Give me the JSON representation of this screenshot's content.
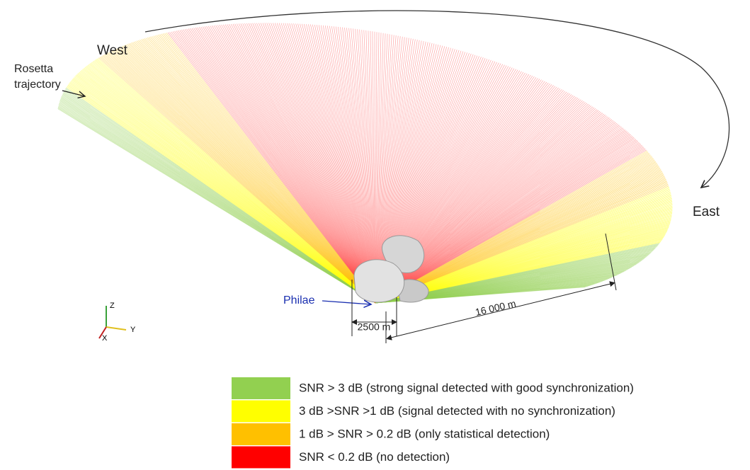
{
  "labels": {
    "west": "West",
    "east": "East",
    "rosetta": [
      "Rosetta",
      "trajectory"
    ],
    "philae": "Philae",
    "dim_short": "2500 m",
    "dim_long": "16 000 m"
  },
  "axes": {
    "z": "Z",
    "y": "Y",
    "x": "X"
  },
  "legend": [
    {
      "color": "#92d050",
      "label": "SNR > 3 dB (strong signal detected with good synchronization)"
    },
    {
      "color": "#ffff00",
      "label": "3 dB >SNR >1 dB (signal detected with no synchronization)"
    },
    {
      "color": "#ffc000",
      "label": "1 dB > SNR > 0.2 dB (only statistical detection)"
    },
    {
      "color": "#ff0000",
      "label": "SNR < 0.2 dB (no detection)"
    }
  ]
}
